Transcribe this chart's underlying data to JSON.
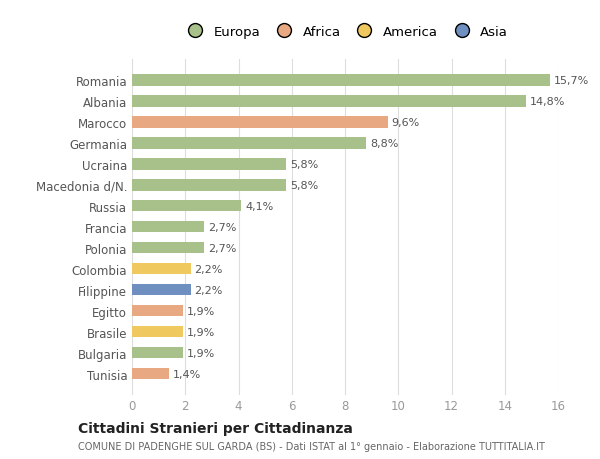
{
  "countries": [
    "Tunisia",
    "Bulgaria",
    "Brasile",
    "Egitto",
    "Filippine",
    "Colombia",
    "Polonia",
    "Francia",
    "Russia",
    "Macedonia d/N.",
    "Ucraina",
    "Germania",
    "Marocco",
    "Albania",
    "Romania"
  ],
  "values": [
    1.4,
    1.9,
    1.9,
    1.9,
    2.2,
    2.2,
    2.7,
    2.7,
    4.1,
    5.8,
    5.8,
    8.8,
    9.6,
    14.8,
    15.7
  ],
  "labels": [
    "1,4%",
    "1,9%",
    "1,9%",
    "1,9%",
    "2,2%",
    "2,2%",
    "2,7%",
    "2,7%",
    "4,1%",
    "5,8%",
    "5,8%",
    "8,8%",
    "9,6%",
    "14,8%",
    "15,7%"
  ],
  "colors": [
    "#e8a882",
    "#a8c08a",
    "#f0c860",
    "#e8a882",
    "#6e8fc0",
    "#f0c860",
    "#a8c08a",
    "#a8c08a",
    "#a8c08a",
    "#a8c08a",
    "#a8c08a",
    "#a8c08a",
    "#e8a882",
    "#a8c08a",
    "#a8c08a"
  ],
  "legend_labels": [
    "Europa",
    "Africa",
    "America",
    "Asia"
  ],
  "legend_colors": [
    "#a8c08a",
    "#e8a882",
    "#f0c860",
    "#6e8fc0"
  ],
  "title": "Cittadini Stranieri per Cittadinanza",
  "subtitle": "COMUNE DI PADENGHE SUL GARDA (BS) - Dati ISTAT al 1° gennaio - Elaborazione TUTTITALIA.IT",
  "xlim": [
    0,
    16
  ],
  "xticks": [
    0,
    2,
    4,
    6,
    8,
    10,
    12,
    14,
    16
  ],
  "bg_color": "#ffffff",
  "grid_color": "#dddddd",
  "bar_height": 0.55
}
